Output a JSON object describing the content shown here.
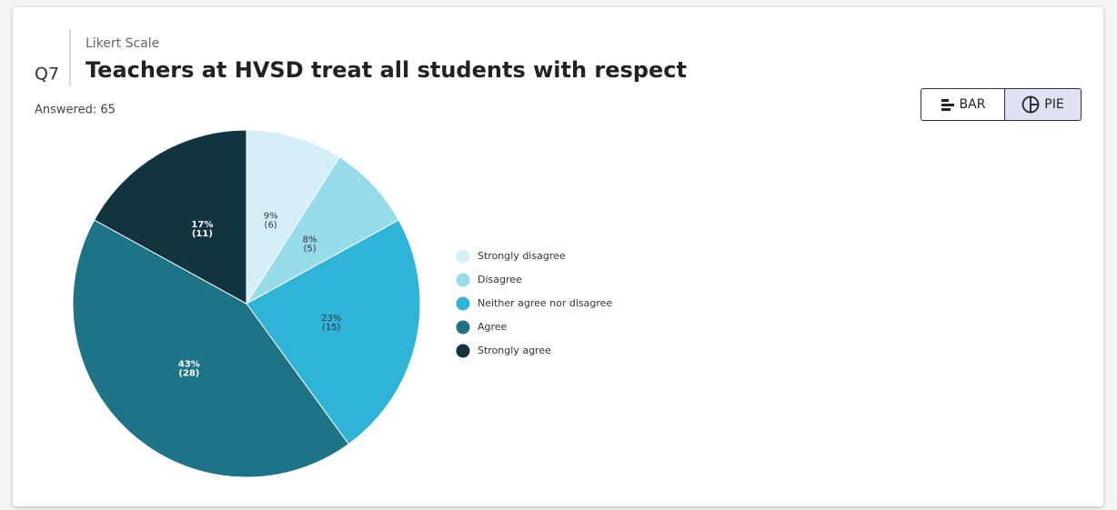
{
  "question": {
    "number": "Q7",
    "kind": "Likert Scale",
    "title": "Teachers at HVSD treat all students with respect",
    "answered": "Answered: 65"
  },
  "view_toggle": {
    "bar": "BAR",
    "pie": "PIE",
    "selected": "pie"
  },
  "chart_data": {
    "type": "pie",
    "categories": [
      "Strongly disagree",
      "Disagree",
      "Neither agree nor disagree",
      "Agree",
      "Strongly agree"
    ],
    "values": [
      9,
      8,
      23,
      43,
      17
    ],
    "value_labels": [
      "9%",
      "8%",
      "23%",
      "43%",
      "17%"
    ],
    "count_labels": [
      "(6)",
      "(5)",
      "(15)",
      "(28)",
      "(11)"
    ],
    "colors": [
      "#d4eff7",
      "#97dbeb",
      "#2fb4d7",
      "#1f7387",
      "#103540"
    ],
    "label_colors": [
      "#333333",
      "#333333",
      "#333333",
      "#ffffff",
      "#ffffff"
    ],
    "legend": "right"
  }
}
